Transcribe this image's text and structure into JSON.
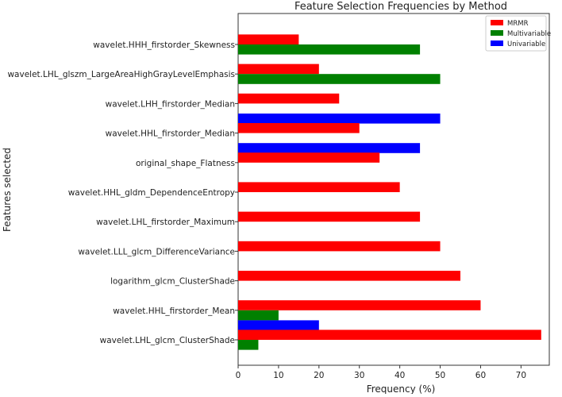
{
  "chart_data": {
    "type": "bar",
    "orientation": "horizontal",
    "title": "Feature Selection Frequencies by Method",
    "xlabel": "Frequency (%)",
    "ylabel": "Features selected",
    "xlim": [
      0,
      77
    ],
    "xticks": [
      "0",
      "10",
      "20",
      "30",
      "40",
      "50",
      "60",
      "70"
    ],
    "grid": false,
    "legend_position": "top-right",
    "categories": [
      "wavelet.HHH_firstorder_Skewness",
      "wavelet.LHL_glszm_LargeAreaHighGrayLevelEmphasis",
      "wavelet.LHH_firstorder_Median",
      "wavelet.HHL_firstorder_Median",
      "original_shape_Flatness",
      "wavelet.HHL_gldm_DependenceEntropy",
      "wavelet.LHL_firstorder_Maximum",
      "wavelet.LLL_glcm_DifferenceVariance",
      "logarithm_glcm_ClusterShade",
      "wavelet.HHL_firstorder_Mean",
      "wavelet.LHL_glcm_ClusterShade"
    ],
    "series": [
      {
        "name": "MRMR",
        "color": "#ff0000",
        "values": [
          15,
          20,
          25,
          30,
          35,
          40,
          45,
          50,
          55,
          60,
          75
        ]
      },
      {
        "name": "Multivariable",
        "color": "#008000",
        "values": [
          45,
          50,
          0,
          0,
          0,
          0,
          0,
          0,
          0,
          10,
          5
        ]
      },
      {
        "name": "Univariable",
        "color": "#0000ff",
        "values": [
          0,
          0,
          50,
          45,
          0,
          0,
          0,
          0,
          0,
          20,
          0
        ]
      }
    ]
  }
}
